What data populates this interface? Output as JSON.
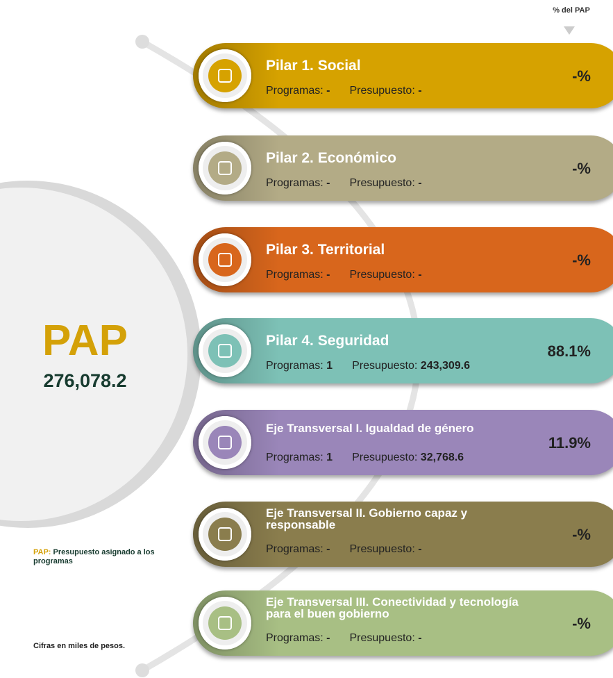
{
  "header": {
    "pct_label": "% del PAP"
  },
  "pap": {
    "title": "PAP",
    "value": "276,078.2"
  },
  "labels": {
    "programs": "Programas:",
    "budget": "Presupuesto:"
  },
  "pillars": [
    {
      "title": "Pilar 1. Social",
      "programs": "-",
      "budget": "-",
      "pct": "-%",
      "color": "#d6a200"
    },
    {
      "title": "Pilar 2. Económico",
      "programs": "-",
      "budget": "-",
      "pct": "-%",
      "color": "#b3ab86"
    },
    {
      "title": "Pilar 3. Territorial",
      "programs": "-",
      "budget": "-",
      "pct": "-%",
      "color": "#d8661c"
    },
    {
      "title": "Pilar 4. Seguridad",
      "programs": "1",
      "budget": "243,309.6",
      "pct": "88.1%",
      "color": "#7dc1b6"
    },
    {
      "title": "Eje Transversal I. Igualdad de género",
      "programs": "1",
      "budget": "32,768.6",
      "pct": "11.9%",
      "color": "#9a86b9"
    },
    {
      "title": "Eje Transversal II. Gobierno capaz y responsable",
      "programs": "-",
      "budget": "-",
      "pct": "-%",
      "color": "#8a7d4d"
    },
    {
      "title": "Eje Transversal III. Conectividad y tecnología para el buen gobierno",
      "programs": "-",
      "budget": "-",
      "pct": "-%",
      "color": "#a8bf84"
    }
  ],
  "legend": {
    "key": "PAP:",
    "text": "Presupuesto asignado a los programas"
  },
  "note": "Cifras en miles de pesos."
}
